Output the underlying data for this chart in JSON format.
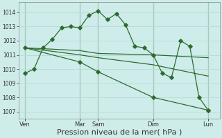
{
  "bg_color": "#ceecea",
  "grid_color": "#b8dbd8",
  "line_color": "#2d6b2d",
  "marker_color": "#2d6b2d",
  "xlabel": "Pression niveau de la mer( hPa )",
  "xlabel_fontsize": 8,
  "ylim": [
    1006.5,
    1014.7
  ],
  "yticks": [
    1007,
    1008,
    1009,
    1010,
    1011,
    1012,
    1013,
    1014
  ],
  "day_labels": [
    "Ven",
    "Mar",
    "Sam",
    "Dim",
    "Lun"
  ],
  "day_positions": [
    0,
    72,
    96,
    168,
    240
  ],
  "xlim": [
    -8,
    255
  ],
  "series1": {
    "x": [
      0,
      12,
      24,
      36,
      48,
      60,
      72,
      84,
      96,
      108,
      120,
      132,
      144,
      156,
      168,
      180,
      192,
      204,
      216,
      228,
      240
    ],
    "y": [
      1009.7,
      1010.0,
      1011.5,
      1012.1,
      1012.9,
      1013.0,
      1012.9,
      1013.8,
      1014.1,
      1013.5,
      1013.9,
      1013.1,
      1011.6,
      1011.5,
      1011.0,
      1009.7,
      1009.4,
      1012.0,
      1011.6,
      1008.0,
      1007.1
    ]
  },
  "series2": {
    "x": [
      0,
      72,
      96,
      168,
      240
    ],
    "y": [
      1011.5,
      1011.3,
      1011.1,
      1011.0,
      1010.8
    ]
  },
  "series3": {
    "x": [
      0,
      72,
      96,
      168,
      240
    ],
    "y": [
      1011.5,
      1011.0,
      1010.8,
      1010.3,
      1009.5
    ]
  },
  "series4": {
    "x": [
      0,
      72,
      96,
      168,
      240
    ],
    "y": [
      1011.5,
      1010.5,
      1009.8,
      1008.0,
      1007.1
    ]
  }
}
